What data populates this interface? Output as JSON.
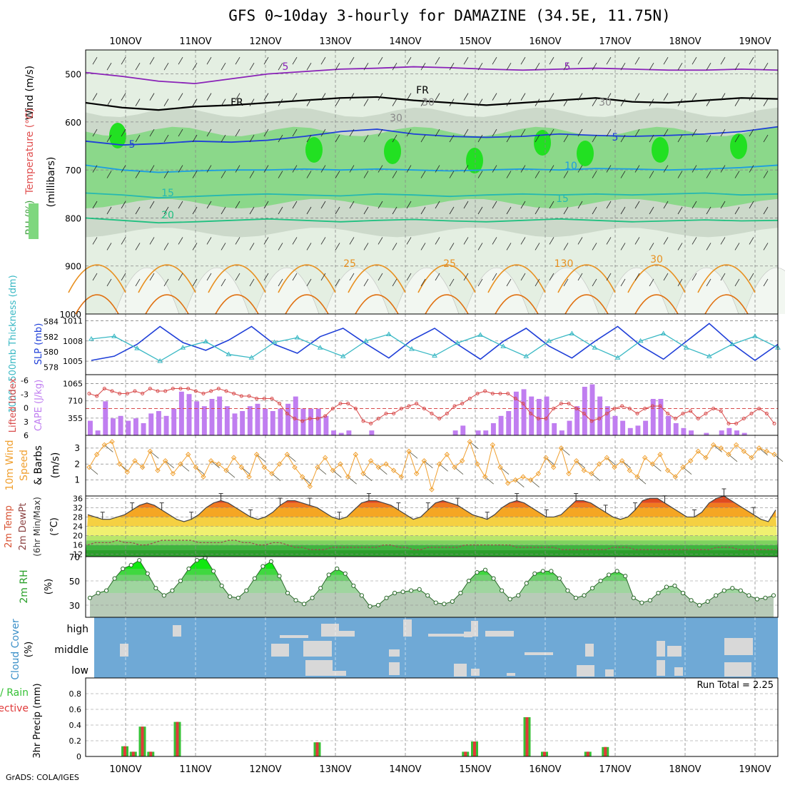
{
  "title": "GFS 0~10day 3-hourly for DAMAZINE (34.5E, 11.75N)",
  "credit": "GrADS: COLA/IGES",
  "dates": [
    "10NOV",
    "11NOV",
    "12NOV",
    "13NOV",
    "14NOV",
    "15NOV",
    "16NOV",
    "17NOV",
    "18NOV",
    "19NOV"
  ],
  "colors": {
    "rh_light": "#e4efe2",
    "rh_mid": "#c9d6c8",
    "rh_green": "#7fd77f",
    "rh_bright": "#22e022",
    "slp": "#1f3fd8",
    "thickness": "#39b8c4",
    "cape": "#c07ef0",
    "lifted": "#d84a4a",
    "wind": "#f0a030",
    "cloud_bg": "#6fa9d6",
    "cloud_fill": "#d8d8d8",
    "rain_green": "#35c135",
    "rain_red": "#e03a3a"
  },
  "chart_data": [
    {
      "panel": "upper_air",
      "type": "heatmap",
      "ylabel": "(millibars)",
      "legend_labels": [
        "Wind (m/s)",
        "Temperature (°C)",
        "RH (%)"
      ],
      "ylim": [
        1000,
        450
      ],
      "yticks": [
        500,
        600,
        700,
        800,
        900,
        1000
      ],
      "contour_labels": [
        "5",
        "5",
        "FR",
        "FR",
        "30",
        "30",
        "30",
        "5",
        "5",
        "10",
        "15",
        "15",
        "20",
        "25",
        "25",
        "30",
        "130"
      ],
      "isotherms": [
        {
          "name": "-5",
          "level_mb": [
            497,
            505,
            515,
            520,
            510,
            500,
            495,
            490,
            488,
            485,
            487,
            490,
            492,
            490,
            488,
            490,
            492,
            492,
            490,
            492
          ]
        },
        {
          "name": "FR",
          "level_mb": [
            560,
            570,
            575,
            568,
            565,
            560,
            555,
            550,
            548,
            555,
            560,
            565,
            560,
            555,
            550,
            558,
            560,
            555,
            550,
            552
          ]
        },
        {
          "name": "5",
          "level_mb": [
            640,
            648,
            645,
            640,
            642,
            638,
            630,
            620,
            615,
            625,
            630,
            632,
            630,
            625,
            628,
            630,
            628,
            625,
            620,
            610
          ]
        },
        {
          "name": "10",
          "level_mb": [
            690,
            700,
            705,
            702,
            700,
            700,
            698,
            700,
            698,
            700,
            702,
            700,
            698,
            700,
            697,
            698,
            700,
            698,
            695,
            690
          ]
        },
        {
          "name": "15",
          "level_mb": [
            748,
            752,
            758,
            755,
            752,
            750,
            752,
            754,
            750,
            752,
            755,
            752,
            750,
            752,
            750,
            752,
            750,
            748,
            752,
            750
          ]
        },
        {
          "name": "20",
          "level_mb": [
            800,
            805,
            810,
            808,
            805,
            802,
            805,
            808,
            805,
            803,
            806,
            808,
            805,
            802,
            805,
            808,
            806,
            804,
            806,
            805
          ]
        }
      ]
    },
    {
      "panel": "slp_thickness",
      "type": "line",
      "ylabel_left": "1000~500mb Thickness (dm)",
      "ylabel_right": "SLP (mb)",
      "thickness_ticks": [
        578,
        580,
        582,
        584
      ],
      "slp_ticks": [
        1005,
        1008,
        1011
      ],
      "series": [
        {
          "name": "SLP (mb)",
          "values": [
            1004.8,
            1005.5,
            1007.5,
            1010.5,
            1007.8,
            1006.5,
            1008.2,
            1010.5,
            1007.5,
            1006.0,
            1008.8,
            1010.2,
            1007.6,
            1005.2,
            1008.2,
            1010.2,
            1007.5,
            1005.0,
            1008.0,
            1010.2,
            1007.2,
            1005.2,
            1008.0,
            1010.5,
            1007.3,
            1005.0,
            1008.0,
            1011.0,
            1007.6,
            1004.8,
            1007.5
          ]
        },
        {
          "name": "Thickness (dm)",
          "values": [
            581.8,
            582.2,
            580.4,
            578.5,
            580.5,
            581.4,
            579.5,
            579.0,
            581.3,
            582.0,
            580.5,
            579.2,
            581.5,
            582.5,
            580.3,
            579.3,
            581.2,
            582.4,
            580.7,
            579.2,
            581.5,
            582.6,
            580.5,
            579.0,
            581.5,
            582.6,
            580.5,
            579.2,
            581.0,
            582.2,
            580.5
          ]
        }
      ]
    },
    {
      "panel": "cape_lifted",
      "type": "bar",
      "ylabel_left": "Lifted Index",
      "ylabel_right": "CAPE (J/kg)",
      "li_ticks": [
        "-6",
        "-3",
        "0",
        "3",
        "6"
      ],
      "cape_ticks": [
        355,
        710,
        1065
      ],
      "series": [
        {
          "name": "CAPE",
          "values": [
            300,
            100,
            700,
            350,
            400,
            300,
            350,
            250,
            450,
            500,
            400,
            550,
            900,
            850,
            700,
            600,
            750,
            800,
            600,
            450,
            500,
            600,
            650,
            550,
            500,
            550,
            650,
            800,
            550,
            550,
            550,
            400,
            100,
            50,
            100,
            0,
            0,
            100,
            0,
            0,
            0,
            0,
            0,
            0,
            0,
            0,
            0,
            0,
            100,
            200,
            0,
            100,
            100,
            250,
            400,
            500,
            900,
            950,
            800,
            750,
            800,
            250,
            100,
            300,
            600,
            1000,
            1050,
            800,
            600,
            400,
            300,
            150,
            200,
            300,
            750,
            750,
            400,
            250,
            150,
            100,
            0,
            50,
            0,
            100,
            150,
            100,
            50,
            0,
            0,
            0,
            0
          ]
        },
        {
          "name": "Lifted Index",
          "values": [
            -3,
            -2.5,
            -4,
            -3.5,
            -3,
            -3,
            -3.5,
            -3,
            -4,
            -3.5,
            -3.5,
            -4,
            -4,
            -4,
            -3.5,
            -3,
            -3.5,
            -4,
            -3.5,
            -3,
            -2.5,
            -2.5,
            -2,
            -2,
            -2,
            -1,
            1,
            2,
            2.5,
            2,
            2,
            1.5,
            0,
            -1,
            -1,
            0,
            2.5,
            3,
            2,
            1,
            1,
            0,
            -0.5,
            -1,
            0,
            1,
            2,
            1,
            -0.5,
            -1,
            -2,
            -3,
            -3.5,
            -3,
            -3,
            -3,
            -2,
            -1,
            1,
            2,
            2,
            0,
            -1,
            -1,
            0,
            1,
            2.5,
            2,
            1,
            0,
            -0.5,
            0,
            1,
            0,
            -0.5,
            -0.5,
            1,
            2,
            1,
            0.5,
            2,
            1,
            0,
            0.5,
            3,
            3,
            2,
            1,
            0,
            1,
            3
          ]
        }
      ]
    },
    {
      "panel": "wind10m",
      "type": "line",
      "ylabel": "10m Wind Speed & Barbs (m/s)",
      "yticks": [
        1,
        2,
        3
      ],
      "values": [
        1.8,
        2.6,
        3.2,
        3.4,
        2.0,
        1.5,
        2.2,
        1.8,
        2.8,
        1.6,
        2.2,
        1.4,
        2.0,
        2.6,
        1.8,
        1.2,
        2.2,
        2.0,
        1.6,
        2.4,
        1.8,
        1.2,
        2.6,
        1.8,
        1.4,
        2.0,
        2.6,
        1.8,
        1.2,
        0.6,
        1.8,
        2.4,
        1.6,
        2.0,
        1.2,
        2.6,
        1.4,
        2.2,
        1.8,
        2.0,
        1.6,
        1.2,
        2.8,
        1.4,
        2.2,
        0.4,
        2.0,
        2.6,
        1.8,
        2.2,
        3.4,
        2.0,
        1.2,
        3.2,
        1.8,
        0.8,
        1.0,
        1.2,
        1.0,
        1.4,
        2.4,
        1.8,
        3.0,
        1.4,
        2.2,
        1.6,
        1.4,
        2.0,
        2.4,
        1.8,
        2.2,
        1.6,
        1.2,
        2.4,
        2.0,
        2.6,
        1.6,
        1.2,
        1.8,
        2.2,
        2.8,
        2.4,
        3.2,
        3.0,
        2.6,
        3.2,
        2.8,
        2.4,
        3.0,
        2.8,
        2.6
      ]
    },
    {
      "panel": "temp2m",
      "type": "area",
      "ylabel": "2m Temp 2m DewPt (6hr Min/Max) (°C)",
      "yticks": [
        12,
        16,
        20,
        24,
        28,
        32,
        36
      ],
      "ylim": [
        11,
        37
      ],
      "series": [
        {
          "name": "2m Temp",
          "values": [
            29,
            28,
            27,
            27,
            28,
            29,
            31,
            33,
            34,
            33,
            31,
            29,
            27,
            26,
            27,
            29,
            32,
            34,
            35,
            34,
            32,
            30,
            28,
            27,
            28,
            30,
            33,
            35,
            35,
            34,
            33,
            32,
            30,
            28,
            27,
            28,
            31,
            34,
            35,
            35,
            34,
            33,
            31,
            29,
            27,
            28,
            31,
            34,
            35,
            34,
            33,
            31,
            29,
            28,
            27,
            29,
            32,
            34,
            35,
            34,
            32,
            30,
            28,
            28,
            29,
            32,
            35,
            35,
            34,
            32,
            30,
            28,
            27,
            28,
            31,
            35,
            36,
            36,
            34,
            32,
            30,
            28,
            28,
            30,
            34,
            36,
            37,
            35,
            33,
            31,
            29,
            27,
            26,
            31
          ]
        },
        {
          "name": "2m DewPt",
          "values": [
            16,
            17,
            17,
            17,
            18,
            17,
            17,
            16,
            16,
            17,
            18,
            18,
            18,
            18,
            18,
            17,
            17,
            17,
            17,
            18,
            18,
            17,
            17,
            16,
            16,
            17,
            17,
            16,
            15,
            15,
            14,
            14,
            14,
            15,
            15,
            15,
            15,
            15,
            15,
            15,
            16,
            16,
            15,
            15,
            14,
            14,
            15,
            15,
            15,
            15,
            15,
            16,
            16,
            16,
            16,
            16,
            16,
            16,
            15,
            15,
            15,
            15,
            15,
            15,
            14,
            14,
            14,
            14,
            14,
            14,
            14,
            15,
            15,
            15,
            14,
            14,
            14,
            14,
            14,
            14,
            14,
            14,
            14,
            14,
            14,
            15,
            15,
            15,
            14,
            14,
            14,
            14,
            14,
            14
          ]
        }
      ]
    },
    {
      "panel": "rh2m",
      "type": "area",
      "ylabel": "2m RH (%)",
      "yticks": [
        30,
        50,
        70
      ],
      "ylim": [
        20,
        70
      ],
      "values": [
        36,
        40,
        42,
        52,
        60,
        63,
        67,
        56,
        44,
        38,
        42,
        50,
        60,
        67,
        69,
        58,
        46,
        37,
        36,
        42,
        52,
        62,
        66,
        54,
        40,
        34,
        31,
        36,
        44,
        55,
        60,
        56,
        46,
        38,
        29,
        30,
        36,
        40,
        41,
        42,
        43,
        38,
        32,
        31,
        33,
        40,
        50,
        57,
        59,
        52,
        42,
        35,
        38,
        48,
        56,
        58,
        58,
        52,
        42,
        36,
        38,
        44,
        50,
        55,
        58,
        54,
        36,
        32,
        34,
        40,
        45,
        46,
        40,
        34,
        30,
        33,
        38,
        42,
        44,
        42,
        38,
        35,
        36,
        38
      ]
    },
    {
      "panel": "cloud",
      "type": "bar",
      "ylabel": "Cloud Cover (%)",
      "categories": [
        "high",
        "middle",
        "low"
      ]
    },
    {
      "panel": "precip",
      "type": "bar",
      "ylabel": "3hr Precip (mm)",
      "legend": [
        "Total / Rain",
        "Convective"
      ],
      "annotation": "Run Total = 2.25",
      "ylim": [
        0,
        1.0
      ],
      "yticks": [
        0,
        0.2,
        0.4,
        0.6,
        0.8
      ],
      "bars": [
        {
          "x": 10.0,
          "value": 0.13
        },
        {
          "x": 10.12,
          "value": 0.06
        },
        {
          "x": 10.25,
          "value": 0.38
        },
        {
          "x": 10.37,
          "value": 0.06
        },
        {
          "x": 10.75,
          "value": 0.44
        },
        {
          "x": 12.75,
          "value": 0.18
        },
        {
          "x": 14.87,
          "value": 0.06
        },
        {
          "x": 15.0,
          "value": 0.19
        },
        {
          "x": 15.75,
          "value": 0.5
        },
        {
          "x": 16.0,
          "value": 0.06
        },
        {
          "x": 16.62,
          "value": 0.06
        },
        {
          "x": 16.87,
          "value": 0.12
        }
      ]
    }
  ]
}
